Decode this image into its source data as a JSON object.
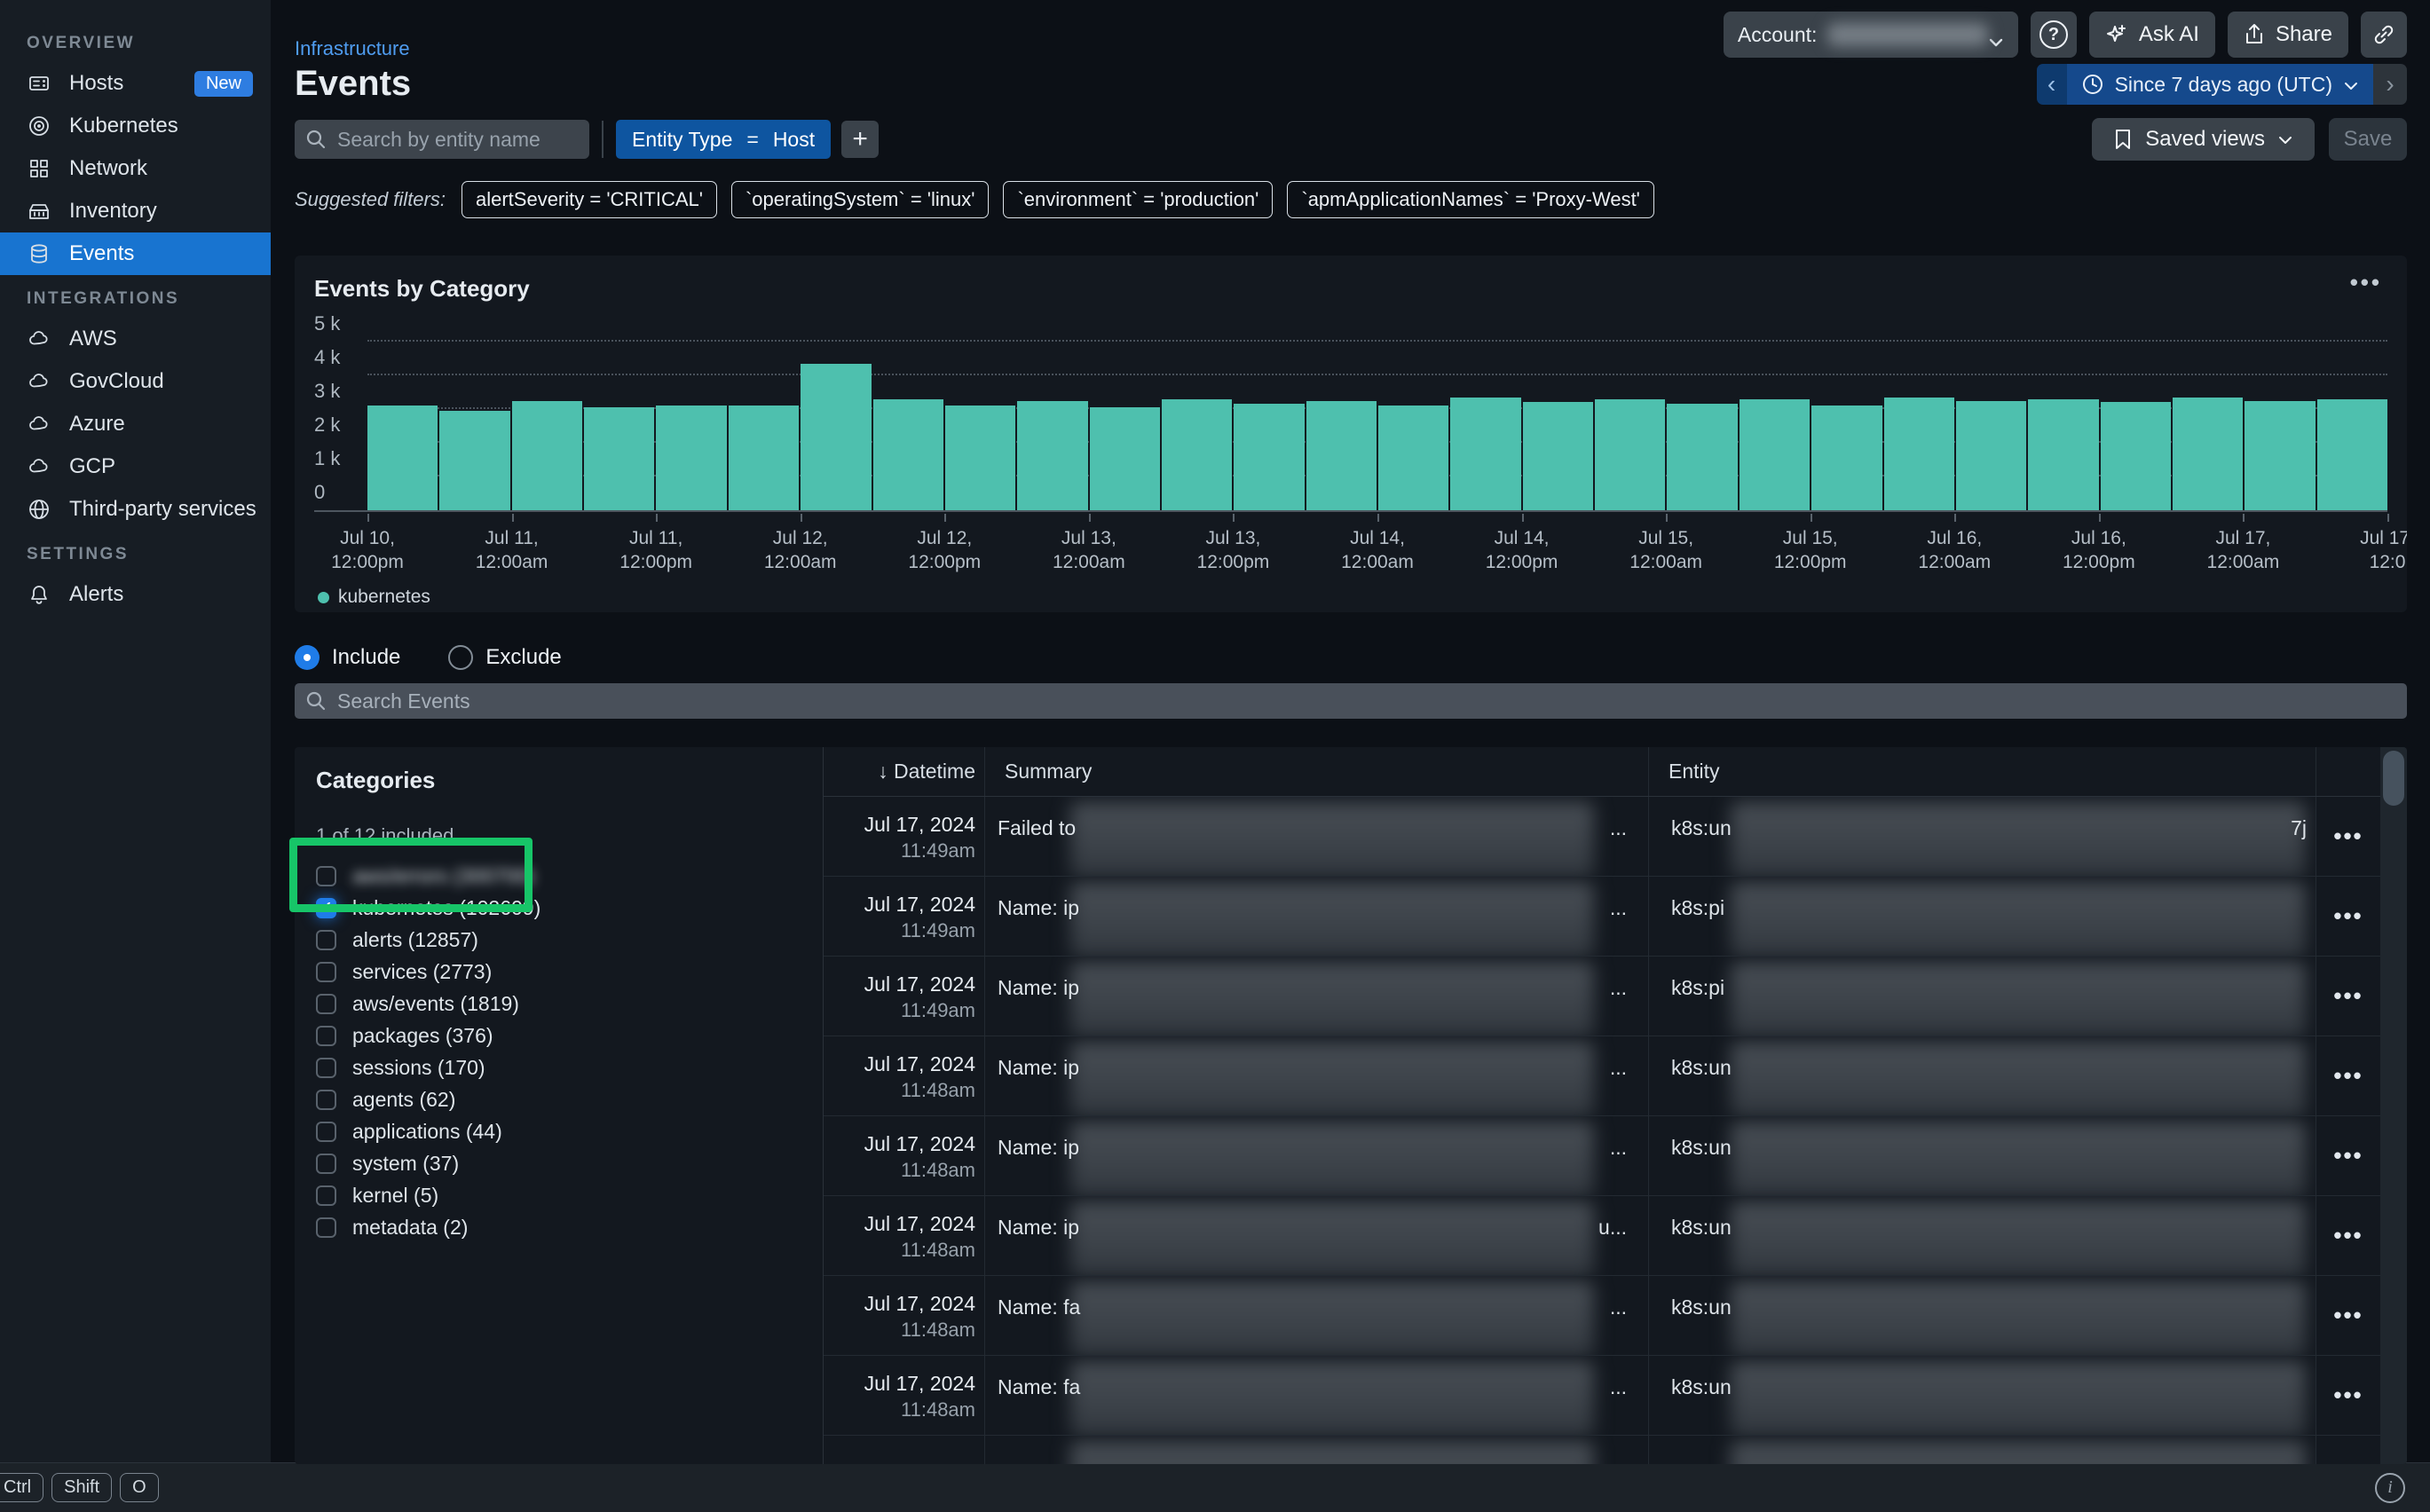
{
  "colors": {
    "accent_blue": "#1f7ce8",
    "nav_selected_blue": "#1874d0",
    "chip_blue": "#0e55a0",
    "time_pill_blue": "#15498c",
    "bar_teal": "#4ec0ae",
    "annotation_green": "#17c568",
    "card_bg": "#13181f",
    "page_bg": "#0c1016"
  },
  "sidebar": {
    "sections": [
      {
        "label": "OVERVIEW",
        "items": [
          {
            "label": "Hosts",
            "icon": "hosts-icon",
            "badge": "New"
          },
          {
            "label": "Kubernetes",
            "icon": "kubernetes-icon"
          },
          {
            "label": "Network",
            "icon": "network-icon"
          },
          {
            "label": "Inventory",
            "icon": "inventory-icon"
          },
          {
            "label": "Events",
            "icon": "events-icon",
            "selected": true
          }
        ]
      },
      {
        "label": "INTEGRATIONS",
        "items": [
          {
            "label": "AWS",
            "icon": "cloud-icon"
          },
          {
            "label": "GovCloud",
            "icon": "cloud-icon"
          },
          {
            "label": "Azure",
            "icon": "cloud-icon"
          },
          {
            "label": "GCP",
            "icon": "cloud-icon"
          },
          {
            "label": "Third-party services",
            "icon": "globe-icon"
          }
        ]
      },
      {
        "label": "SETTINGS",
        "items": [
          {
            "label": "Alerts",
            "icon": "bell-icon"
          }
        ]
      }
    ]
  },
  "header": {
    "breadcrumb": "Infrastructure",
    "title": "Events",
    "account_label": "Account:",
    "account_value_blurred": true,
    "help_label": "?",
    "ask_ai_label": "Ask AI",
    "share_label": "Share"
  },
  "time_picker": {
    "label": "Since 7 days ago (UTC)"
  },
  "filter_bar": {
    "search_placeholder": "Search by entity name",
    "entity_chip": {
      "field": "Entity Type",
      "op": "=",
      "value": "Host"
    },
    "saved_views_label": "Saved views",
    "save_label": "Save"
  },
  "suggested_filters": {
    "label": "Suggested filters:",
    "pills": [
      "alertSeverity = 'CRITICAL'",
      "`operatingSystem` = 'linux'",
      "`environment` = 'production'",
      "`apmApplicationNames` = 'Proxy-West'"
    ]
  },
  "chart_card": {
    "title": "Events by Category",
    "menu_label": "..."
  },
  "chart_data": {
    "type": "bar",
    "title": "Events by Category",
    "series": [
      {
        "name": "kubernetes",
        "color": "#4ec0ae",
        "values": [
          3100,
          2950,
          3250,
          3050,
          3100,
          3100,
          4350,
          3300,
          3100,
          3250,
          3050,
          3300,
          3150,
          3250,
          3100,
          3350,
          3200,
          3300,
          3150,
          3300,
          3100,
          3350,
          3250,
          3300,
          3200,
          3350,
          3250,
          3300
        ]
      }
    ],
    "x_interval_hours": 12,
    "x_tick_labels": [
      "Jul 10,\n12:00pm",
      "Jul 11,\n12:00am",
      "Jul 11,\n12:00pm",
      "Jul 12,\n12:00am",
      "Jul 12,\n12:00pm",
      "Jul 13,\n12:00am",
      "Jul 13,\n12:00pm",
      "Jul 14,\n12:00am",
      "Jul 14,\n12:00pm",
      "Jul 15,\n12:00am",
      "Jul 15,\n12:00pm",
      "Jul 16,\n12:00am",
      "Jul 16,\n12:00pm",
      "Jul 17,\n12:00am",
      "Jul 17,\n12:0"
    ],
    "y_tick_labels": [
      "0",
      "1 k",
      "2 k",
      "3 k",
      "4 k",
      "5 k"
    ],
    "ylim": [
      0,
      5000
    ],
    "grid": "dotted-horizontal",
    "legend_position": "bottom-left",
    "legend": [
      {
        "label": "kubernetes",
        "color": "#4ec0ae"
      }
    ]
  },
  "include_exclude": {
    "include_label": "Include",
    "exclude_label": "Exclude",
    "selected": "Include",
    "search_placeholder": "Search Events"
  },
  "categories": {
    "title": "Categories",
    "included_summary": "1 of 12 included",
    "items": [
      {
        "label": "aws/errors (300700)",
        "checked": false,
        "blurred": true
      },
      {
        "label": "kubernetes (102609)",
        "checked": true,
        "highlighted": true
      },
      {
        "label": "alerts (12857)",
        "checked": false
      },
      {
        "label": "services (2773)",
        "checked": false
      },
      {
        "label": "aws/events (1819)",
        "checked": false
      },
      {
        "label": "packages (376)",
        "checked": false
      },
      {
        "label": "sessions (170)",
        "checked": false
      },
      {
        "label": "agents (62)",
        "checked": false
      },
      {
        "label": "applications (44)",
        "checked": false
      },
      {
        "label": "system (37)",
        "checked": false
      },
      {
        "label": "kernel (5)",
        "checked": false
      },
      {
        "label": "metadata (2)",
        "checked": false
      }
    ]
  },
  "events_table": {
    "columns": [
      "Datetime",
      "Summary",
      "Entity"
    ],
    "sort": {
      "column": "Datetime",
      "direction": "desc"
    },
    "rows": [
      {
        "date": "Jul 17, 2024",
        "time": "11:49am",
        "summary_prefix": "Failed to",
        "trail": "...",
        "entity_prefix": "k8s:un",
        "entity_suffix": "7j"
      },
      {
        "date": "Jul 17, 2024",
        "time": "11:49am",
        "summary_prefix": "Name: ip",
        "trail": "...",
        "entity_prefix": "k8s:pi",
        "entity_suffix": ""
      },
      {
        "date": "Jul 17, 2024",
        "time": "11:49am",
        "summary_prefix": "Name: ip",
        "trail": "...",
        "entity_prefix": "k8s:pi",
        "entity_suffix": ""
      },
      {
        "date": "Jul 17, 2024",
        "time": "11:48am",
        "summary_prefix": "Name: ip",
        "trail": "...",
        "entity_prefix": "k8s:un",
        "entity_suffix": ""
      },
      {
        "date": "Jul 17, 2024",
        "time": "11:48am",
        "summary_prefix": "Name: ip",
        "trail": "...",
        "entity_prefix": "k8s:un",
        "entity_suffix": ""
      },
      {
        "date": "Jul 17, 2024",
        "time": "11:48am",
        "summary_prefix": "Name: ip",
        "trail": "u...",
        "entity_prefix": "k8s:un",
        "entity_suffix": ""
      },
      {
        "date": "Jul 17, 2024",
        "time": "11:48am",
        "summary_prefix": "Name: fa",
        "trail": "...",
        "entity_prefix": "k8s:un",
        "entity_suffix": ""
      },
      {
        "date": "Jul 17, 2024",
        "time": "11:48am",
        "summary_prefix": "Name: fa",
        "trail": "...",
        "entity_prefix": "k8s:un",
        "entity_suffix": ""
      },
      {
        "date": "",
        "time": "",
        "summary_prefix": "",
        "trail": "",
        "entity_prefix": "",
        "entity_suffix": "",
        "clipped": true
      }
    ],
    "row_action_label": "..."
  },
  "footer": {
    "keys": [
      "Ctrl",
      "Shift",
      "O"
    ],
    "info_label": "i"
  }
}
